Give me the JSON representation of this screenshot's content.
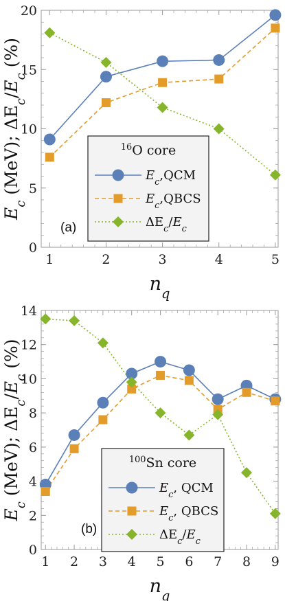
{
  "colors": {
    "qcm": "#5b7fb7",
    "qbcs": "#e39b2a",
    "delta": "#86b52b",
    "axis": "#9a9a9a",
    "legend_bg": "#f3f3f3"
  },
  "chart_data": [
    {
      "type": "line",
      "panel_label": "(a)",
      "legend_title": "¹⁶O core",
      "xlabel": "n_q",
      "ylabel": "E_c (MeV); ΔE_c/E_c (%)",
      "xlim": [
        0.85,
        5.05
      ],
      "ylim": [
        0,
        20
      ],
      "x": [
        1,
        2,
        3,
        4,
        5
      ],
      "xticks": [
        1,
        2,
        3,
        4,
        5
      ],
      "yticks": [
        0,
        5,
        10,
        15,
        20
      ],
      "series": [
        {
          "name": "E_c,QCM",
          "values": [
            9.1,
            14.4,
            15.7,
            15.8,
            19.6
          ]
        },
        {
          "name": "E_c,QBCS",
          "values": [
            7.6,
            12.2,
            13.9,
            14.2,
            18.5
          ]
        },
        {
          "name": "ΔE_c/E_c",
          "values": [
            18.1,
            15.6,
            11.8,
            10.0,
            6.1
          ]
        }
      ]
    },
    {
      "type": "line",
      "panel_label": "(b)",
      "legend_title": "¹⁰⁰Sn core",
      "xlabel": "n_q",
      "ylabel": "E_c (MeV); ΔE_c/E_c (%)",
      "xlim": [
        0.85,
        9.1
      ],
      "ylim": [
        0,
        14
      ],
      "x": [
        1,
        2,
        3,
        4,
        5,
        6,
        7,
        8,
        9
      ],
      "xticks": [
        1,
        2,
        3,
        4,
        5,
        6,
        7,
        8,
        9
      ],
      "yticks": [
        0,
        2,
        4,
        6,
        8,
        10,
        12,
        14
      ],
      "series": [
        {
          "name": "E_c, QCM",
          "values": [
            3.8,
            6.7,
            8.6,
            10.3,
            11.0,
            10.5,
            8.8,
            9.6,
            8.8
          ]
        },
        {
          "name": "E_c, QBCS",
          "values": [
            3.4,
            5.9,
            7.6,
            9.4,
            10.2,
            9.9,
            8.2,
            9.2,
            8.7
          ]
        },
        {
          "name": "ΔE_c/E_c",
          "values": [
            13.5,
            13.4,
            12.1,
            9.8,
            8.0,
            6.7,
            7.9,
            4.5,
            2.1
          ]
        }
      ]
    }
  ]
}
